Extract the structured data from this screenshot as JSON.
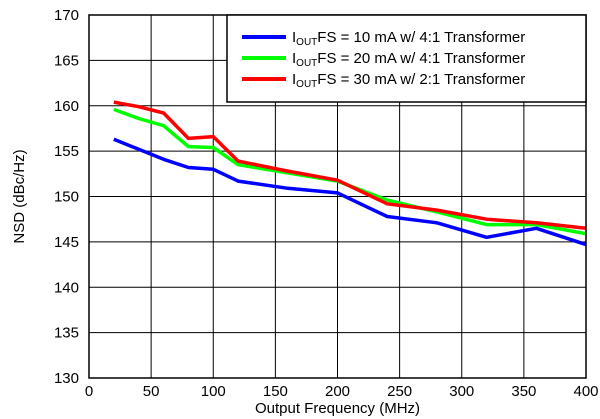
{
  "chart_data": {
    "type": "line",
    "title": "",
    "xlabel": "Output Frequency (MHz)",
    "ylabel": "NSD (dBc/Hz)",
    "xlim": [
      0,
      400
    ],
    "ylim": [
      130,
      170
    ],
    "xticks": [
      0,
      50,
      100,
      150,
      200,
      250,
      300,
      350,
      400
    ],
    "yticks": [
      130,
      135,
      140,
      145,
      150,
      155,
      160,
      165,
      170
    ],
    "grid": true,
    "legend_position": "top-right",
    "series": [
      {
        "name_prefix": "I",
        "name_sub": "OUT",
        "name_suffix": "FS = 10 mA w/ 4:1 Transformer",
        "color": "#0000ff",
        "x": [
          20,
          40,
          60,
          80,
          100,
          120,
          160,
          200,
          240,
          280,
          320,
          360,
          400
        ],
        "y": [
          156.3,
          155.2,
          154.1,
          153.2,
          153.0,
          151.7,
          150.9,
          150.4,
          147.8,
          147.1,
          145.5,
          146.5,
          144.7
        ]
      },
      {
        "name_prefix": "I",
        "name_sub": "OUT",
        "name_suffix": "FS = 20 mA w/ 4:1 Transformer",
        "color": "#00ff00",
        "x": [
          20,
          40,
          60,
          80,
          100,
          120,
          160,
          200,
          240,
          280,
          320,
          360,
          400
        ],
        "y": [
          159.6,
          158.6,
          157.8,
          155.5,
          155.4,
          153.5,
          152.6,
          151.7,
          149.6,
          148.3,
          146.9,
          146.9,
          145.9
        ]
      },
      {
        "name_prefix": "I",
        "name_sub": "OUT",
        "name_suffix": "FS = 30 mA w/ 2:1 Transformer",
        "color": "#ff0000",
        "x": [
          20,
          40,
          60,
          80,
          100,
          120,
          160,
          200,
          240,
          280,
          320,
          360,
          400
        ],
        "y": [
          160.4,
          159.9,
          159.2,
          156.4,
          156.6,
          153.9,
          152.8,
          151.8,
          149.2,
          148.5,
          147.5,
          147.1,
          146.5
        ]
      }
    ]
  }
}
